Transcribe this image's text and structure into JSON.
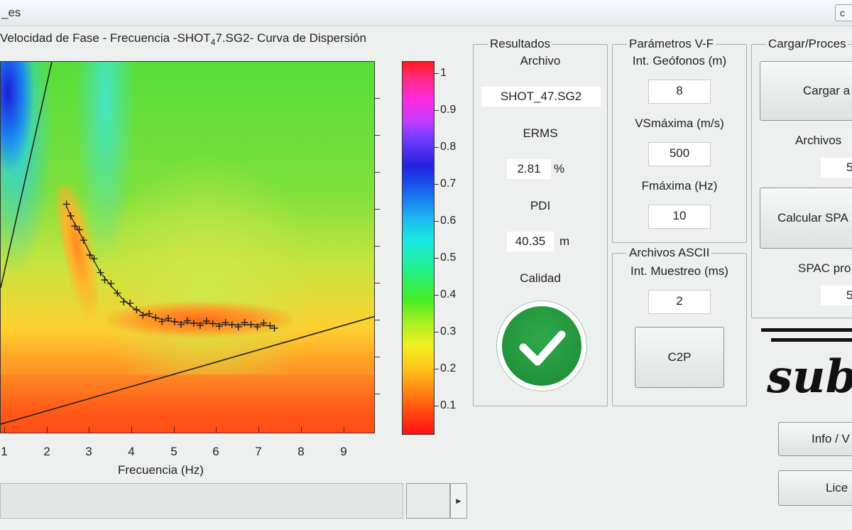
{
  "window": {
    "title": "_es",
    "control_label": "c"
  },
  "plot": {
    "title_prefix": "Velocidad de Fase - Frecuencia -SHOT",
    "title_sub": "4",
    "title_suffix": "7.SG2- Curva de Dispersión",
    "xlabel": "Frecuencia (Hz)",
    "x_tick_labels": [
      "1",
      "2",
      "3",
      "4",
      "5",
      "6",
      "7",
      "8",
      "9"
    ],
    "colorbar_labels": [
      "1",
      "0.9",
      "0.8",
      "0.7",
      "0.6",
      "0.5",
      "0.4",
      "0.3",
      "0.2",
      "0.1"
    ],
    "colorbar_colors": [
      "#ff1a1a",
      "#ff2adf",
      "#2222dd",
      "#1ae8e0",
      "#44ee22",
      "#f0f022",
      "#ff8a14",
      "#ff1010"
    ]
  },
  "resultados": {
    "legend": "Resultados",
    "archivo_label": "Archivo",
    "archivo_value": "SHOT_47.SG2",
    "erms_label": "ERMS",
    "erms_value": "2.81",
    "erms_unit": "%",
    "pdi_label": "PDI",
    "pdi_value": "40.35",
    "pdi_unit": "m",
    "calidad_label": "Calidad",
    "calidad_icon": "check-icon",
    "calidad_color": "#1f8f3a"
  },
  "parametros": {
    "legend": "Parámetros V-F",
    "geofonos_label": "Int. Geófonos (m)",
    "geofonos_value": "8",
    "vsmax_label": "VSmáxima (m/s)",
    "vsmax_value": "500",
    "fmax_label": "Fmáxima (Hz)",
    "fmax_value": "10"
  },
  "ascii": {
    "legend": "Archivos ASCII",
    "muestreo_label": "Int. Muestreo (ms)",
    "muestreo_value": "2",
    "c2p_button": "C2P"
  },
  "cargar": {
    "legend": "Cargar/Proces",
    "cargar_button": "Cargar a",
    "archivos_label": "Archivos",
    "archivos_value": "5",
    "calcular_button": "Calcular SPA",
    "spac_label": "SPAC pro",
    "spac_value": "5"
  },
  "bottom_buttons": {
    "info": "Info / V",
    "licencia": "Lice"
  },
  "logo_text": "subsue",
  "chart_data": {
    "type": "heatmap",
    "title": "Velocidad de Fase - Frecuencia -SHOT47.SG2- Curva de Dispersión",
    "xlabel": "Frecuencia (Hz)",
    "ylabel": "",
    "x_ticks": [
      1,
      2,
      3,
      4,
      5,
      6,
      7,
      8,
      9
    ],
    "xlim": [
      0.9,
      9.9
    ],
    "colorbar_ticks": [
      0.1,
      0.2,
      0.3,
      0.4,
      0.5,
      0.6,
      0.7,
      0.8,
      0.9,
      1
    ],
    "picked_curve": {
      "name": "",
      "x": [
        2.45,
        2.55,
        2.65,
        2.75,
        2.85,
        3.0,
        3.1,
        3.25,
        3.35,
        3.5,
        3.65,
        3.8,
        3.95,
        4.1,
        4.25,
        4.4,
        4.55,
        4.7,
        4.85,
        5.0,
        5.15,
        5.3,
        5.45,
        5.6,
        5.75,
        5.9,
        6.05,
        6.2,
        6.35,
        6.5,
        6.65,
        6.8,
        6.95,
        7.1,
        7.25,
        7.35
      ]
    }
  }
}
